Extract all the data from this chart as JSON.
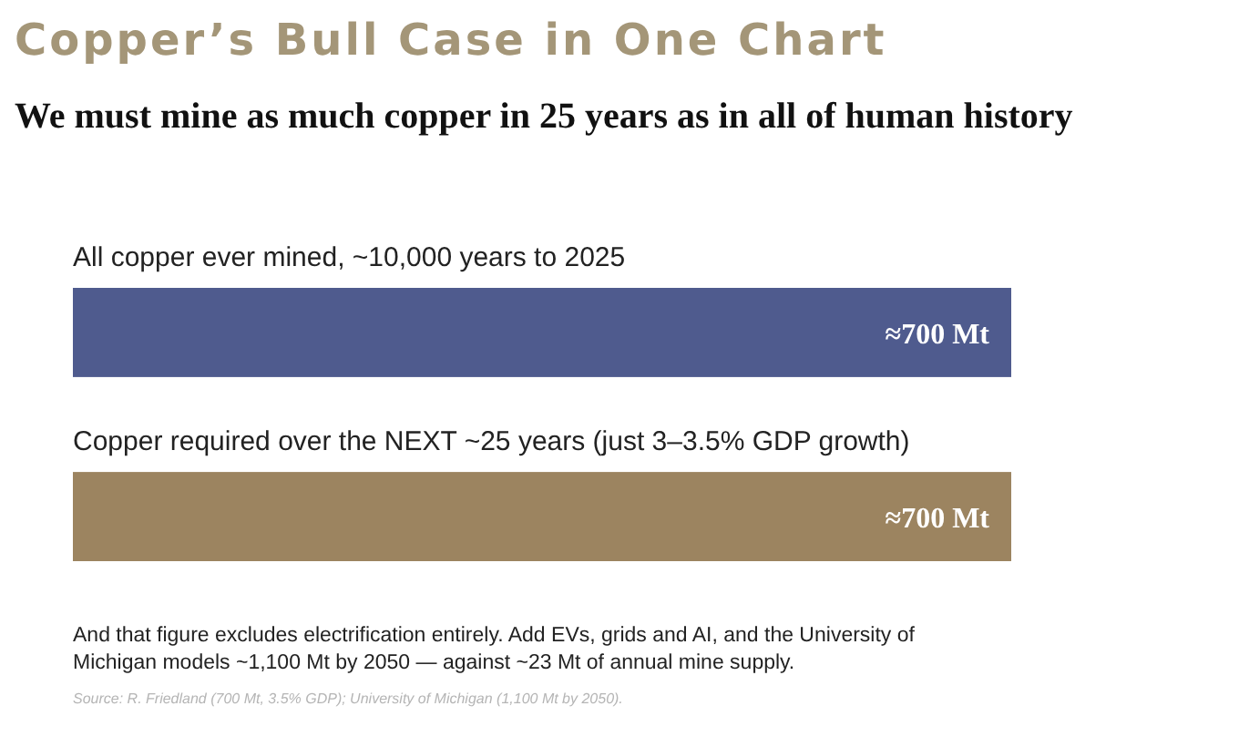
{
  "chart_data": {
    "type": "bar",
    "orientation": "horizontal",
    "title": "Copper’s Bull Case in One Chart",
    "subtitle": "We must mine as much copper in 25 years as in all of human history",
    "categories": [
      "All copper ever mined, ~10,000 years to 2025",
      "Copper required over the NEXT ~25 years (just 3–3.5% GDP growth)"
    ],
    "values": [
      700,
      700
    ],
    "colors": [
      "#4f5b8e",
      "#9c8460"
    ],
    "value_labels": [
      "≈700 Mt",
      "≈700 Mt"
    ],
    "annotations": [
      "And that figure excludes electrification entirely.  Add EVs, grids and AI, and the University of Michigan models ~1,100 Mt by 2050 — against ~23 Mt of annual mine supply.",
      "Source: R. Friedland (700 Mt, 3.5% GDP); University of Michigan (1,100 Mt by 2050)."
    ]
  }
}
